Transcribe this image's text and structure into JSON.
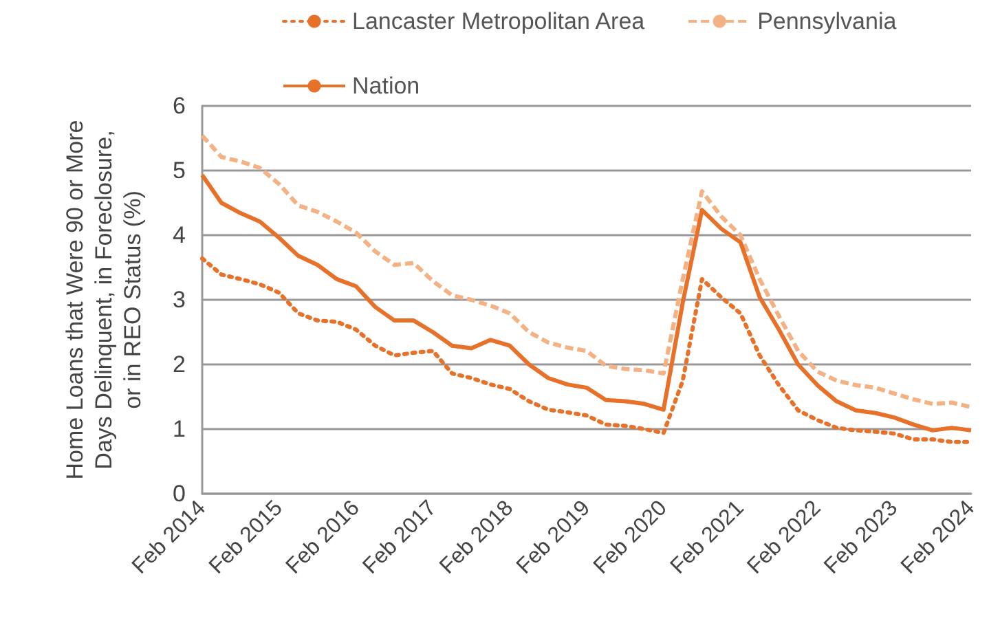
{
  "chart_data": {
    "type": "line",
    "ylabel": "Home Loans that Were 90 or More\nDays Delinquent, in Foreclosure,\nor in REO Status (%)",
    "categories": [
      "Feb 2014",
      null,
      null,
      null,
      "Feb 2015",
      null,
      null,
      null,
      "Feb 2016",
      null,
      null,
      null,
      "Feb 2017",
      null,
      null,
      null,
      "Feb 2018",
      null,
      null,
      null,
      "Feb 2019",
      null,
      null,
      null,
      "Feb 2020",
      null,
      null,
      null,
      "Feb 2021",
      null,
      null,
      null,
      "Feb 2022",
      null,
      null,
      null,
      "Feb 2023",
      null,
      null,
      null,
      "Feb 2024"
    ],
    "series": [
      {
        "name": "Lancaster Metropolitan Area",
        "color": "#e8712a",
        "line_style": "dotted",
        "values": [
          3.64,
          3.39,
          3.32,
          3.24,
          3.11,
          2.79,
          2.68,
          2.66,
          2.54,
          2.29,
          2.14,
          2.18,
          2.21,
          1.86,
          1.79,
          1.69,
          1.62,
          1.43,
          1.3,
          1.26,
          1.21,
          1.07,
          1.05,
          1.0,
          0.94,
          1.75,
          3.32,
          3.04,
          2.79,
          2.14,
          1.68,
          1.29,
          1.14,
          1.02,
          0.98,
          0.96,
          0.93,
          0.84,
          0.84,
          0.8,
          0.8
        ]
      },
      {
        "name": "Pennsylvania",
        "color": "#f4b183",
        "line_style": "dashed",
        "values": [
          5.54,
          5.21,
          5.14,
          5.04,
          4.79,
          4.46,
          4.36,
          4.21,
          4.04,
          3.75,
          3.54,
          3.57,
          3.29,
          3.07,
          3.0,
          2.91,
          2.79,
          2.5,
          2.34,
          2.26,
          2.21,
          1.98,
          1.93,
          1.91,
          1.86,
          3.32,
          4.68,
          4.29,
          4.0,
          3.32,
          2.75,
          2.21,
          1.89,
          1.75,
          1.68,
          1.64,
          1.55,
          1.46,
          1.39,
          1.41,
          1.34
        ]
      },
      {
        "name": "Nation",
        "color": "#e8712a",
        "line_style": "solid",
        "values": [
          4.93,
          4.5,
          4.34,
          4.21,
          3.96,
          3.68,
          3.54,
          3.32,
          3.21,
          2.89,
          2.68,
          2.68,
          2.5,
          2.29,
          2.25,
          2.38,
          2.29,
          2.0,
          1.79,
          1.69,
          1.64,
          1.45,
          1.43,
          1.39,
          1.3,
          2.96,
          4.39,
          4.1,
          3.89,
          3.04,
          2.54,
          2.0,
          1.68,
          1.43,
          1.29,
          1.25,
          1.18,
          1.07,
          0.98,
          1.02,
          0.98
        ]
      }
    ],
    "ylim": [
      0,
      6
    ],
    "yticks": [
      0,
      1,
      2,
      3,
      4,
      5,
      6
    ],
    "grid": "y",
    "legend": "top",
    "marker": "none"
  }
}
